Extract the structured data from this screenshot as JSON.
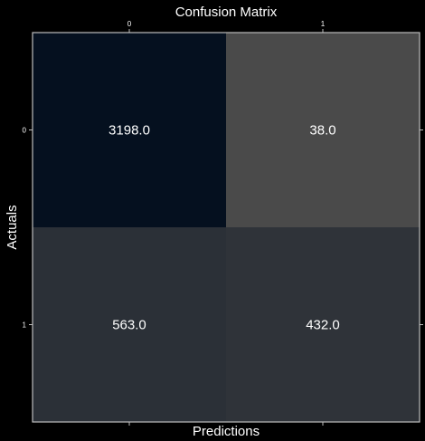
{
  "chart_data": {
    "type": "heatmap",
    "title": "Confusion Matrix",
    "xlabel": "Predictions",
    "ylabel": "Actuals",
    "x_ticks": [
      "0",
      "1"
    ],
    "y_ticks": [
      "0",
      "1"
    ],
    "values": [
      [
        3198.0,
        38.0
      ],
      [
        563.0,
        432.0
      ]
    ],
    "value_labels": [
      [
        "3198.0",
        "38.0"
      ],
      [
        "563.0",
        "432.0"
      ]
    ],
    "x_tick_position": "top",
    "grid": false,
    "colors": {
      "background": "#000000",
      "high": "#05101f",
      "low": "#4a4a4a",
      "frame": "#bdbdbd",
      "text": "#ffffff"
    }
  }
}
